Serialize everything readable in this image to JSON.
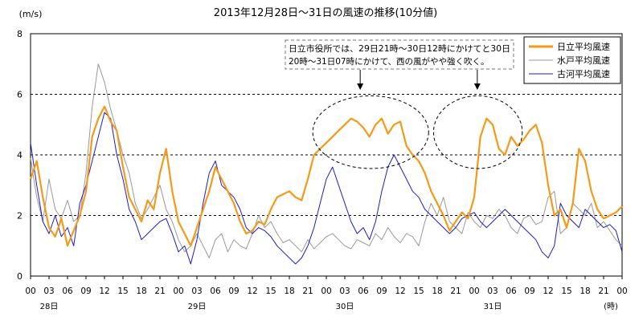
{
  "chart_data": {
    "type": "line",
    "title": "2013年12月28日～31日の風速の推移(10分値)",
    "ylabel": "(m/s)",
    "ylim": [
      0,
      8
    ],
    "yticks": [
      "0",
      "2",
      "4",
      "6",
      "8"
    ],
    "xlim": [
      0,
      96
    ],
    "x_unit": "hours from 2013-12-28 00:00",
    "xticks": [
      "00",
      "03",
      "06",
      "09",
      "12",
      "15",
      "18",
      "21",
      "00",
      "03",
      "06",
      "09",
      "12",
      "15",
      "18",
      "21",
      "00",
      "03",
      "06",
      "09",
      "12",
      "15",
      "18",
      "21",
      "00",
      "03",
      "06",
      "09",
      "12",
      "15",
      "18",
      "21",
      "00"
    ],
    "day_labels": [
      {
        "x": 3,
        "label": "28日"
      },
      {
        "x": 27,
        "label": "29日"
      },
      {
        "x": 51,
        "label": "30日"
      },
      {
        "x": 75,
        "label": "31日"
      }
    ],
    "x_unit_label": "(時)",
    "grid": {
      "horizontal_dashed_at": [
        2,
        4,
        6
      ]
    },
    "annotation": {
      "lines": [
        "日立市役所では、29日21時～30日12時にかけてと30日",
        "20時～31日07時にかけて、西の風がやや強く吹く。"
      ],
      "arrows_to_x": [
        53.5,
        72.5
      ],
      "highlight_ellipses": [
        {
          "x_center": 55.2,
          "y_center": 4.75,
          "x_radius": 9.4,
          "y_radius": 1.2
        },
        {
          "x_center": 72.6,
          "y_center": 4.75,
          "x_radius": 7.2,
          "y_radius": 1.2
        }
      ]
    },
    "legend": {
      "position": "top-right"
    },
    "series": [
      {
        "name": "日立平均風速",
        "color": "#f39a1b",
        "x": [
          0,
          1,
          2,
          3,
          4,
          5,
          6,
          7,
          8,
          9,
          10,
          11,
          12,
          13,
          14,
          15,
          16,
          17,
          18,
          19,
          20,
          21,
          22,
          23,
          24,
          25,
          26,
          27,
          28,
          29,
          30,
          31,
          32,
          33,
          34,
          35,
          36,
          37,
          38,
          39,
          40,
          41,
          42,
          43,
          44,
          45,
          46,
          47,
          48,
          49,
          50,
          51,
          52,
          53,
          54,
          55,
          56,
          57,
          58,
          59,
          60,
          61,
          62,
          63,
          64,
          65,
          66,
          67,
          68,
          69,
          70,
          71,
          72,
          73,
          74,
          75,
          76,
          77,
          78,
          79,
          80,
          81,
          82,
          83,
          84,
          85,
          86,
          87,
          88,
          89,
          90,
          91,
          92,
          93,
          94,
          95,
          96
        ],
        "values": [
          3.2,
          3.8,
          2.6,
          1.6,
          1.3,
          1.9,
          1.0,
          1.5,
          2.0,
          2.8,
          4.6,
          5.2,
          5.6,
          5.1,
          4.8,
          3.6,
          2.6,
          2.2,
          1.8,
          2.5,
          2.2,
          3.4,
          4.2,
          2.8,
          1.8,
          1.4,
          1.0,
          1.6,
          2.2,
          2.8,
          3.6,
          3.2,
          2.8,
          2.4,
          1.8,
          1.4,
          1.5,
          1.8,
          1.7,
          2.2,
          2.6,
          2.7,
          2.8,
          2.6,
          2.5,
          3.2,
          4.0,
          4.2,
          4.4,
          4.6,
          4.8,
          5.0,
          5.2,
          5.1,
          4.9,
          4.6,
          5.0,
          5.2,
          4.7,
          5.0,
          5.1,
          4.3,
          4.0,
          3.8,
          3.4,
          2.8,
          2.4,
          2.0,
          1.5,
          1.8,
          2.1,
          1.9,
          2.6,
          4.6,
          5.2,
          5.0,
          4.2,
          4.0,
          4.6,
          4.3,
          4.5,
          4.8,
          5.0,
          4.4,
          3.0,
          2.0,
          2.2,
          1.6,
          2.4,
          4.2,
          3.8,
          2.8,
          2.2,
          1.9,
          2.0,
          2.1,
          2.3
        ]
      },
      {
        "name": "水戸平均風速",
        "color": "#999999",
        "x": [
          0,
          1,
          2,
          3,
          4,
          5,
          6,
          7,
          8,
          9,
          10,
          11,
          12,
          13,
          14,
          15,
          16,
          17,
          18,
          19,
          20,
          21,
          22,
          23,
          24,
          25,
          26,
          27,
          28,
          29,
          30,
          31,
          32,
          33,
          34,
          35,
          36,
          37,
          38,
          39,
          40,
          41,
          42,
          43,
          44,
          45,
          46,
          47,
          48,
          49,
          50,
          51,
          52,
          53,
          54,
          55,
          56,
          57,
          58,
          59,
          60,
          61,
          62,
          63,
          64,
          65,
          66,
          67,
          68,
          69,
          70,
          71,
          72,
          73,
          74,
          75,
          76,
          77,
          78,
          79,
          80,
          81,
          82,
          83,
          84,
          85,
          86,
          87,
          88,
          89,
          90,
          91,
          92,
          93,
          94,
          95,
          96
        ],
        "values": [
          3.9,
          2.6,
          1.8,
          3.2,
          2.2,
          1.9,
          2.5,
          1.8,
          2.0,
          3.4,
          5.6,
          7.0,
          6.4,
          5.5,
          4.8,
          4.0,
          3.4,
          2.4,
          1.9,
          2.2,
          2.6,
          3.0,
          2.2,
          1.8,
          1.2,
          0.8,
          1.0,
          1.4,
          1.0,
          0.6,
          1.2,
          1.4,
          0.8,
          1.2,
          1.0,
          0.9,
          1.4,
          2.0,
          1.6,
          1.8,
          1.4,
          1.1,
          1.2,
          1.0,
          0.8,
          1.2,
          0.9,
          1.1,
          1.3,
          1.4,
          1.2,
          1.0,
          0.9,
          1.2,
          1.1,
          1.0,
          1.4,
          1.2,
          1.6,
          1.3,
          1.1,
          1.4,
          1.3,
          1.0,
          1.8,
          2.4,
          2.0,
          2.6,
          1.8,
          1.6,
          1.4,
          2.1,
          1.8,
          1.6,
          2.0,
          1.9,
          2.2,
          2.0,
          1.6,
          1.4,
          1.9,
          2.0,
          1.7,
          1.8,
          2.6,
          2.8,
          1.4,
          1.6,
          2.4,
          2.2,
          2.0,
          2.4,
          1.6,
          1.8,
          1.5,
          1.2,
          1.0
        ]
      },
      {
        "name": "古河平均風速",
        "color": "#1c1ccc",
        "x": [
          0,
          1,
          2,
          3,
          4,
          5,
          6,
          7,
          8,
          9,
          10,
          11,
          12,
          13,
          14,
          15,
          16,
          17,
          18,
          19,
          20,
          21,
          22,
          23,
          24,
          25,
          26,
          27,
          28,
          29,
          30,
          31,
          32,
          33,
          34,
          35,
          36,
          37,
          38,
          39,
          40,
          41,
          42,
          43,
          44,
          45,
          46,
          47,
          48,
          49,
          50,
          51,
          52,
          53,
          54,
          55,
          56,
          57,
          58,
          59,
          60,
          61,
          62,
          63,
          64,
          65,
          66,
          67,
          68,
          69,
          70,
          71,
          72,
          73,
          74,
          75,
          76,
          77,
          78,
          79,
          80,
          81,
          82,
          83,
          84,
          85,
          86,
          87,
          88,
          89,
          90,
          91,
          92,
          93,
          94,
          95,
          96
        ],
        "values": [
          4.4,
          3.0,
          1.8,
          1.4,
          2.0,
          1.3,
          1.6,
          1.0,
          2.4,
          3.0,
          3.8,
          4.6,
          5.4,
          5.2,
          4.0,
          3.2,
          2.2,
          1.8,
          1.2,
          1.4,
          1.6,
          1.8,
          1.9,
          1.4,
          0.8,
          1.0,
          0.4,
          1.2,
          2.4,
          3.4,
          3.8,
          3.0,
          2.8,
          2.6,
          2.2,
          1.6,
          1.4,
          1.6,
          1.5,
          1.3,
          1.0,
          0.8,
          0.6,
          0.4,
          0.6,
          1.0,
          1.6,
          2.4,
          3.2,
          3.6,
          3.0,
          2.4,
          1.8,
          1.4,
          1.6,
          1.2,
          1.8,
          2.8,
          3.6,
          4.0,
          3.6,
          3.2,
          2.8,
          2.6,
          2.2,
          2.0,
          1.8,
          1.6,
          1.4,
          1.6,
          1.9,
          2.0,
          2.1,
          1.8,
          1.6,
          1.8,
          2.0,
          2.2,
          2.0,
          1.8,
          1.6,
          1.4,
          1.2,
          0.8,
          0.6,
          1.0,
          2.4,
          2.0,
          1.8,
          1.6,
          2.2,
          2.0,
          1.8,
          1.6,
          1.7,
          1.5,
          0.8
        ]
      }
    ]
  }
}
